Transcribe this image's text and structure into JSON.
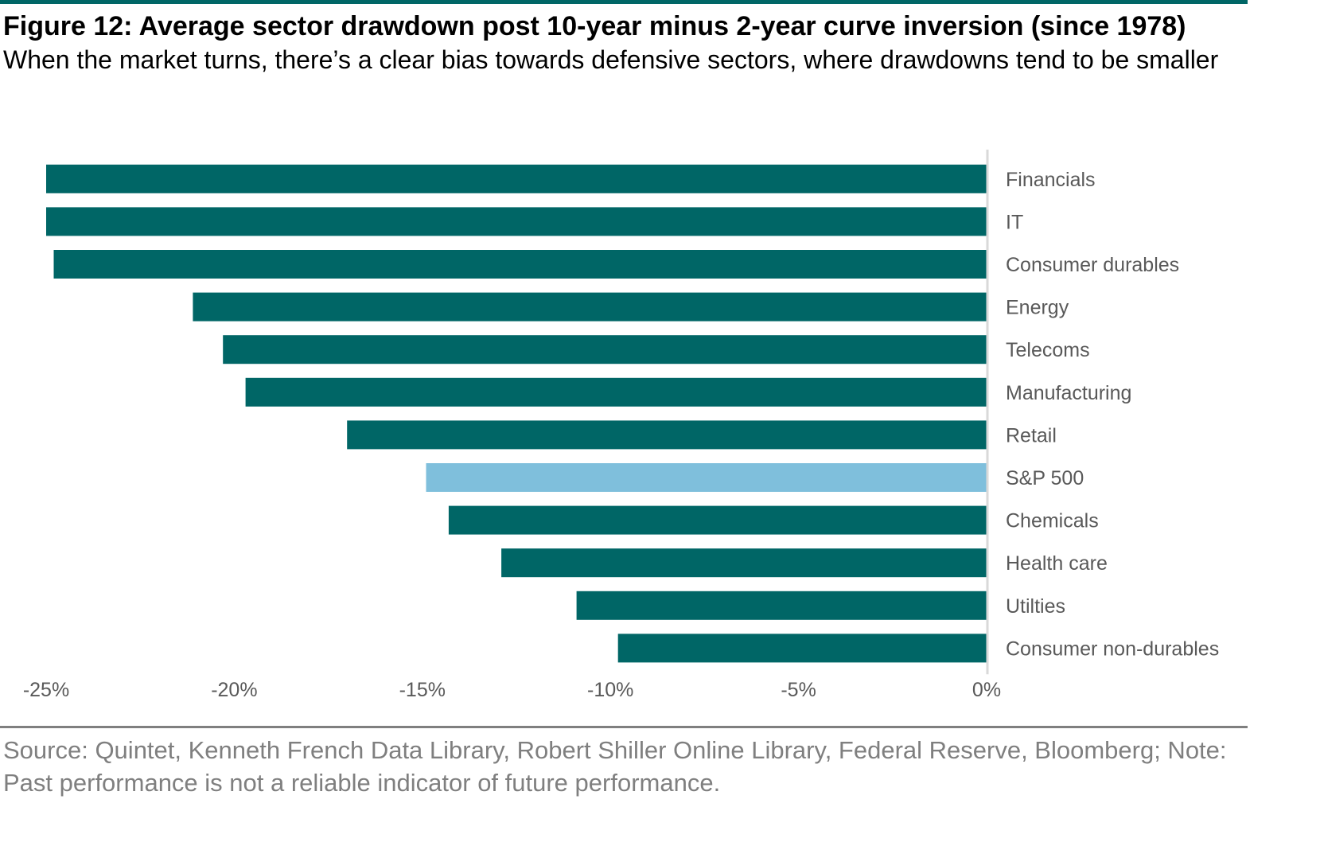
{
  "header": {
    "title": "Figure 12: Average sector drawdown post 10-year minus 2-year curve inversion (since 1978)",
    "subtitle": "When the market turns, there’s a clear bias towards defensive sectors, where drawdowns tend to be smaller"
  },
  "footer": {
    "source": "Source: Quintet, Kenneth French Data Library, Robert Shiller Online Library, Federal Reserve, Bloomberg; Note: Past performance is not a reliable indicator of future performance."
  },
  "colors": {
    "bar": "#006666",
    "highlight": "#7fbfdc",
    "rule": "#006666",
    "label": "#595959"
  },
  "chart_data": {
    "type": "bar",
    "orientation": "horizontal",
    "categories": [
      "Financials",
      "IT",
      "Consumer durables",
      "Energy",
      "Telecoms",
      "Manufacturing",
      "Retail",
      "S&P 500",
      "Chemicals",
      "Health care",
      "Utilties",
      "Consumer non-durables"
    ],
    "values": [
      -25.0,
      -25.0,
      -24.8,
      -21.1,
      -20.3,
      -19.7,
      -17.0,
      -14.9,
      -14.3,
      -12.9,
      -10.9,
      -9.8
    ],
    "highlight_category": "S&P 500",
    "xlim": [
      -25,
      0
    ],
    "xticks": [
      -25,
      -20,
      -15,
      -10,
      -5,
      0
    ],
    "xtick_labels": [
      "-25%",
      "-20%",
      "-15%",
      "-10%",
      "-5%",
      "0%"
    ],
    "category_label_side": "right",
    "grid": false,
    "legend": "none"
  }
}
